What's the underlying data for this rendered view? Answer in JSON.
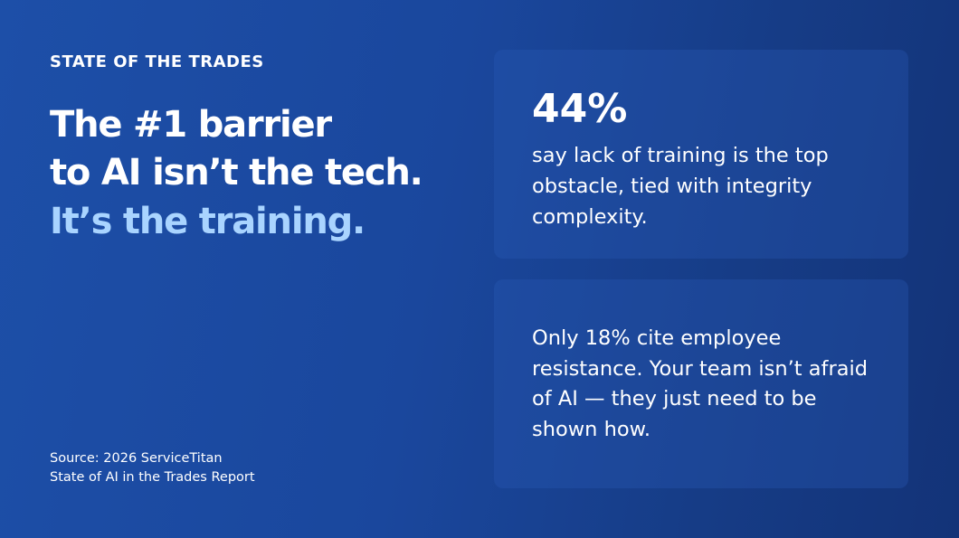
{
  "eyebrow": "STATE OF THE TRADES",
  "headline": {
    "lines": [
      "The #1 barrier",
      "to AI isn’t the tech."
    ],
    "highlight": "It’s the training."
  },
  "source": {
    "lines": [
      "Source: 2026 ServiceTitan",
      "State of AI in the Trades Report"
    ]
  },
  "cards": [
    {
      "stat": "44%",
      "lines": [
        "say lack of training is the top",
        "obstacle, tied with integrity",
        "complexity."
      ]
    },
    {
      "lines": [
        "Only 18% cite employee",
        "resistance. Your team isn’t afraid",
        "of AI — they just need to be",
        "shown how."
      ]
    }
  ]
}
